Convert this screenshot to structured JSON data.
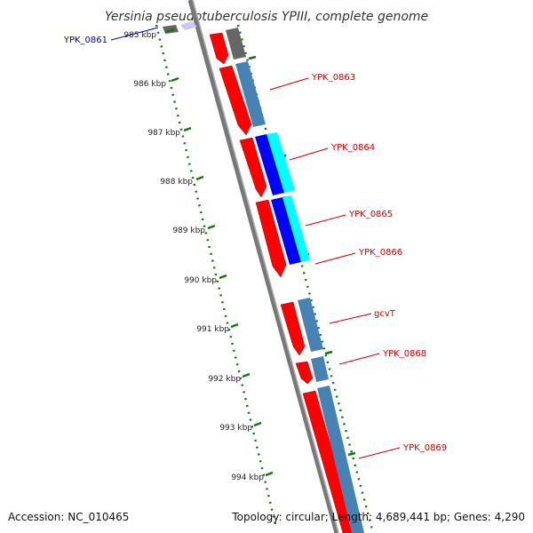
{
  "title": "Yersinia pseudotuberculosis YPIII, complete genome",
  "accession": "Accession: NC_010465",
  "summary": "Topology: circular; Length: 4,689,441 bp; Genes: 4,290",
  "ticks": [
    {
      "label": "985 kbp"
    },
    {
      "label": "986 kbp"
    },
    {
      "label": "987 kbp"
    },
    {
      "label": "988 kbp"
    },
    {
      "label": "989 kbp"
    },
    {
      "label": "990 kbp"
    },
    {
      "label": "991 kbp"
    },
    {
      "label": "992 kbp"
    },
    {
      "label": "993 kbp"
    },
    {
      "label": "994 kbp"
    }
  ],
  "genes": [
    {
      "name": "YPK_0861",
      "color": "#0000aa"
    },
    {
      "name": "YPK_0863",
      "color": "#cc0000"
    },
    {
      "name": "YPK_0864",
      "color": "#cc0000"
    },
    {
      "name": "YPK_0865",
      "color": "#cc0000"
    },
    {
      "name": "YPK_0866",
      "color": "#cc0000"
    },
    {
      "name": "gcvT",
      "color": "#cc0000"
    },
    {
      "name": "YPK_0868",
      "color": "#cc0000"
    },
    {
      "name": "YPK_0869",
      "color": "#cc0000"
    }
  ],
  "colors": {
    "cds": "#ff0000",
    "gene": "#4682b4",
    "dark_feature": "#666666",
    "blue_feature": "#0000ff",
    "cyan_feature": "#00ffff",
    "backbone": "#888888",
    "tick": "#117711"
  }
}
